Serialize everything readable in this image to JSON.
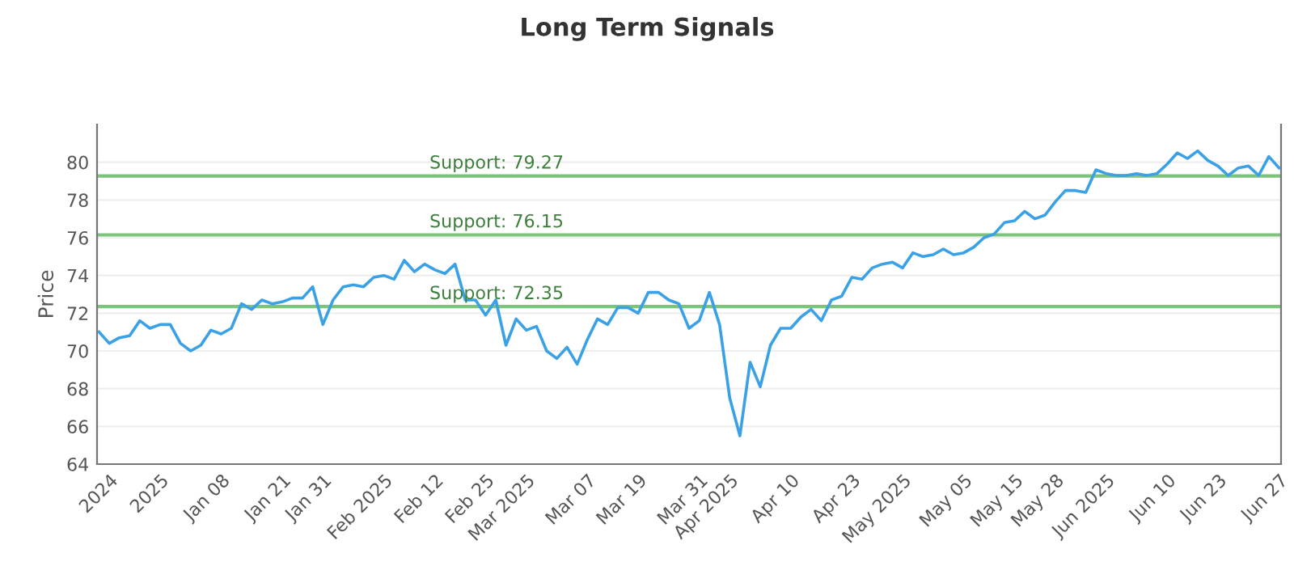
{
  "chart_data": {
    "type": "line",
    "title": "Long Term Signals",
    "ylabel": "Price",
    "categories": [
      null,
      "2024",
      null,
      null,
      null,
      null,
      "2025",
      null,
      null,
      null,
      null,
      null,
      "Jan 08",
      null,
      null,
      null,
      null,
      null,
      "Jan 21",
      null,
      null,
      null,
      "Jan 31",
      null,
      null,
      null,
      null,
      null,
      "Feb 2025",
      null,
      null,
      null,
      null,
      "Feb 12",
      null,
      null,
      null,
      null,
      "Feb 25",
      null,
      null,
      null,
      "Mar 2025",
      null,
      null,
      null,
      null,
      null,
      "Mar 07",
      null,
      null,
      null,
      null,
      "Mar 19",
      null,
      null,
      null,
      null,
      null,
      "Mar 31",
      null,
      null,
      "Apr 2025",
      null,
      null,
      null,
      null,
      null,
      "Apr 10",
      null,
      null,
      null,
      null,
      null,
      "Apr 23",
      null,
      null,
      null,
      null,
      "May 2025",
      null,
      null,
      null,
      null,
      null,
      "May 05",
      null,
      null,
      null,
      null,
      "May 15",
      null,
      null,
      null,
      "May 28",
      null,
      null,
      null,
      null,
      "Jun 2025",
      null,
      null,
      null,
      null,
      null,
      "Jun 10",
      null,
      null,
      null,
      null,
      "Jun 23",
      null,
      null,
      null,
      null,
      null,
      "Jun 27"
    ],
    "series": [
      {
        "color": "#3ba1e6",
        "values": [
          71.0,
          70.4,
          70.7,
          70.8,
          71.6,
          71.2,
          71.4,
          71.4,
          70.4,
          70.0,
          70.3,
          71.1,
          70.9,
          71.2,
          72.5,
          72.2,
          72.7,
          72.5,
          72.6,
          72.8,
          72.8,
          73.4,
          71.4,
          72.7,
          73.4,
          73.5,
          73.4,
          73.9,
          74.0,
          73.8,
          74.8,
          74.2,
          74.6,
          74.3,
          74.1,
          74.6,
          72.7,
          72.7,
          71.9,
          72.7,
          70.3,
          71.7,
          71.1,
          71.3,
          70.0,
          69.6,
          70.2,
          69.3,
          70.6,
          71.7,
          71.4,
          72.3,
          72.3,
          72.0,
          73.1,
          73.1,
          72.7,
          72.5,
          71.2,
          71.6,
          73.1,
          71.4,
          67.5,
          65.5,
          69.4,
          68.1,
          70.3,
          71.2,
          71.2,
          71.8,
          72.2,
          71.6,
          72.7,
          72.9,
          73.9,
          73.8,
          74.4,
          74.6,
          74.7,
          74.4,
          75.2,
          75.0,
          75.1,
          75.4,
          75.1,
          75.2,
          75.5,
          76.0,
          76.2,
          76.8,
          76.9,
          77.4,
          77.0,
          77.2,
          77.9,
          78.5,
          78.5,
          78.4,
          79.6,
          79.4,
          79.3,
          79.3,
          79.4,
          79.3,
          79.4,
          79.9,
          80.5,
          80.2,
          80.6,
          80.1,
          79.8,
          79.3,
          79.7,
          79.8,
          79.3,
          80.3,
          79.7
        ]
      }
    ],
    "ylim": [
      64,
      82
    ],
    "yticks": [
      64,
      66,
      68,
      70,
      72,
      74,
      76,
      78,
      80
    ],
    "ref_lines": [
      {
        "axis": "y",
        "value": 79.27,
        "label": "Support: 79.27",
        "color": "#7cc47c"
      },
      {
        "axis": "y",
        "value": 76.15,
        "label": "Support: 76.15",
        "color": "#7cc47c"
      },
      {
        "axis": "y",
        "value": 72.35,
        "label": "Support: 72.35",
        "color": "#7cc47c"
      }
    ],
    "grid": "y",
    "legend": false,
    "marker": "none",
    "line_style": "solid"
  }
}
